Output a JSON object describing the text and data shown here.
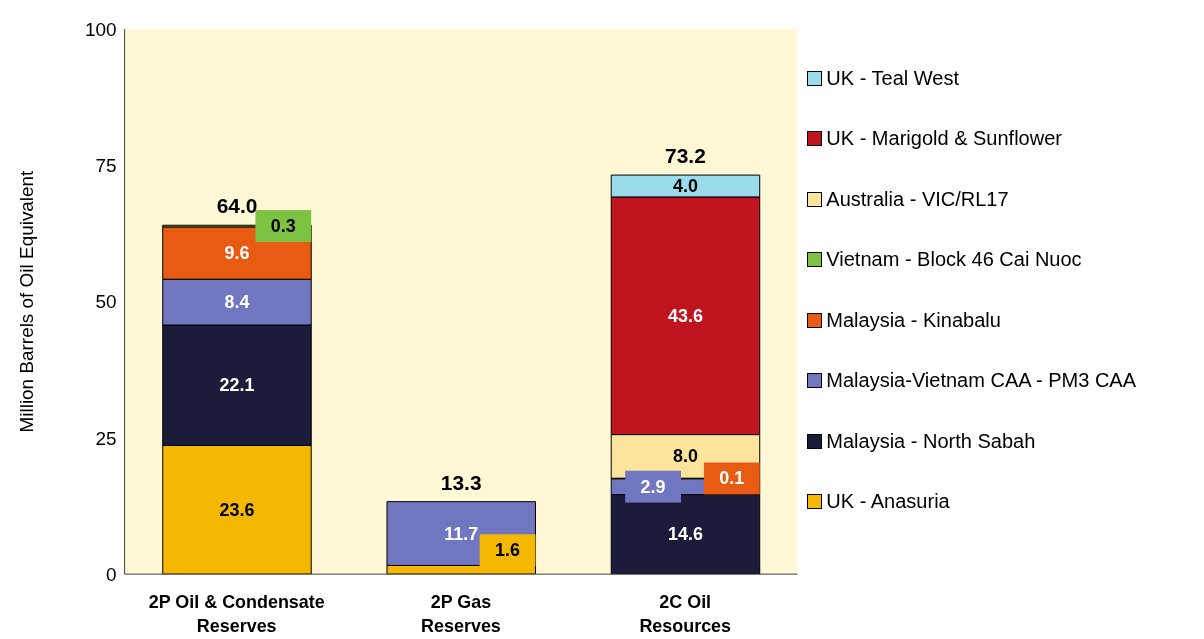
{
  "chart_data": {
    "type": "bar",
    "stacked": true,
    "ylabel": "Million Barrels of Oil Equivalent",
    "categories": [
      "2P Oil & Condensate\nReserves",
      "2P Gas\nReserves",
      "2C Oil\nResources"
    ],
    "series": [
      {
        "name": "UK - Anasuria",
        "color": "#f5b800",
        "values": [
          23.6,
          1.6,
          null
        ],
        "value_labels": [
          "23.6",
          "1.6",
          null
        ]
      },
      {
        "name": "Malaysia - North Sabah",
        "color": "#1b1b3a",
        "values": [
          22.1,
          null,
          14.6
        ],
        "value_labels": [
          "22.1",
          null,
          "14.6"
        ]
      },
      {
        "name": "Malaysia-Vietnam CAA - PM3 CAA",
        "color": "#7076c0",
        "values": [
          8.4,
          11.7,
          2.9
        ],
        "value_labels": [
          "8.4",
          "11.7",
          "2.9"
        ]
      },
      {
        "name": "Malaysia - Kinabalu",
        "color": "#e85b12",
        "values": [
          9.6,
          null,
          0.1
        ],
        "value_labels": [
          "9.6",
          null,
          "0.1"
        ]
      },
      {
        "name": "Vietnam - Block 46 Cai Nuoc",
        "color": "#7dc242",
        "values": [
          0.3,
          null,
          null
        ],
        "value_labels": [
          "0.3",
          null,
          null
        ]
      },
      {
        "name": "Australia - VIC/RL17",
        "color": "#fde49c",
        "values": [
          null,
          null,
          8.0
        ],
        "value_labels": [
          null,
          null,
          "8.0"
        ]
      },
      {
        "name": "UK - Marigold & Sunflower",
        "color": "#c0141e",
        "values": [
          null,
          null,
          43.6
        ],
        "value_labels": [
          null,
          null,
          "43.6"
        ]
      },
      {
        "name": "UK - Teal West",
        "color": "#9adcec",
        "values": [
          null,
          null,
          4.0
        ],
        "value_labels": [
          null,
          null,
          "4.0"
        ]
      }
    ],
    "totals": [
      "64.0",
      "13.3",
      "73.2"
    ],
    "ylim": [
      0,
      100
    ],
    "yticks": [
      0,
      25,
      50,
      75,
      100
    ],
    "grid": false,
    "legend": "right"
  }
}
